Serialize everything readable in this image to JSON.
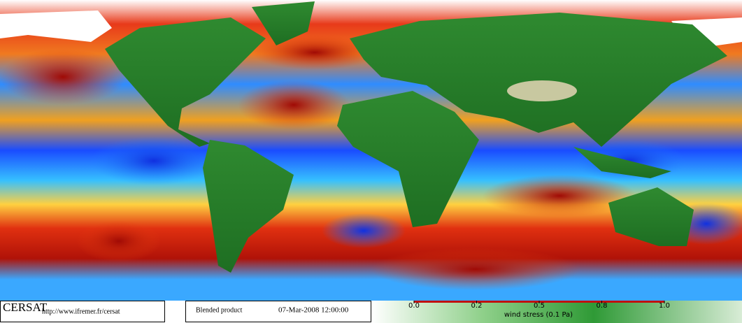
{
  "logo": "CERSAT",
  "url": "http://www.ifremer.fr/cersat",
  "product": "Blended product",
  "date": "07-Mar-2008 12:00:00",
  "colorbar": {
    "label": "wind stress (0.1 Pa)",
    "ticks": [
      {
        "value": 0,
        "label": "0.0"
      },
      0.2,
      0.5,
      0.8,
      {
        "value": 1,
        "label": "1.0"
      }
    ]
  }
}
